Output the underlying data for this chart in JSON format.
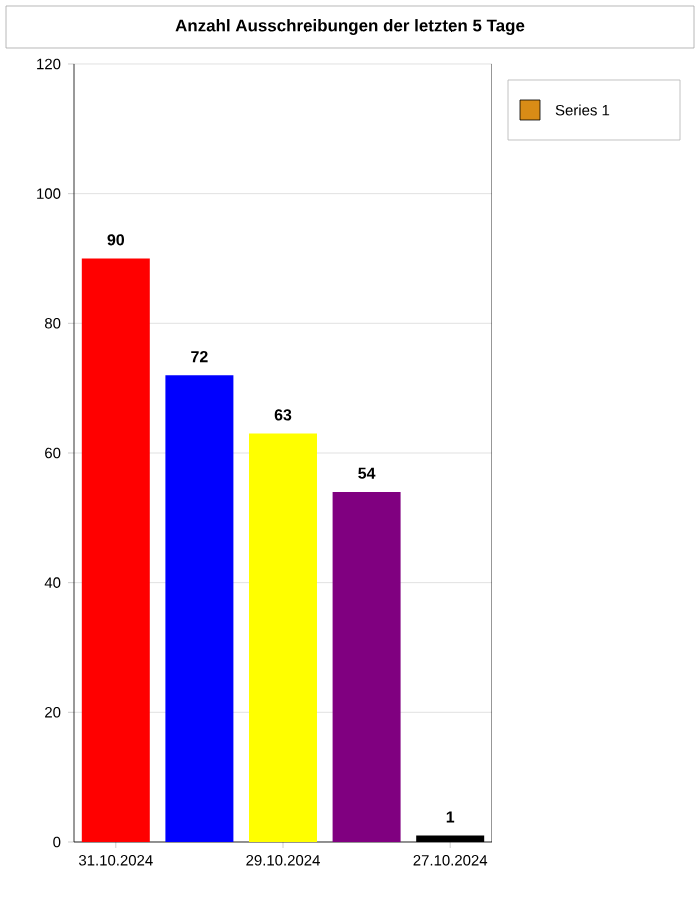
{
  "chart_data": {
    "type": "bar",
    "title": "Anzahl Ausschreibungen der letzten 5 Tage",
    "categories": [
      "31.10.2024",
      null,
      "29.10.2024",
      null,
      "27.10.2024"
    ],
    "series": [
      {
        "name": "Series 1",
        "color": "#d98c16",
        "colors": [
          "#ff0000",
          "#0000ff",
          "#ffff00",
          "#800080",
          "#000000"
        ],
        "values": [
          90,
          72,
          63,
          54,
          1
        ]
      }
    ],
    "ylim": [
      0,
      120
    ],
    "yticks": [
      0,
      20,
      40,
      60,
      80,
      100,
      120
    ],
    "grid": "y",
    "legend": "top right",
    "data_labels": true
  }
}
